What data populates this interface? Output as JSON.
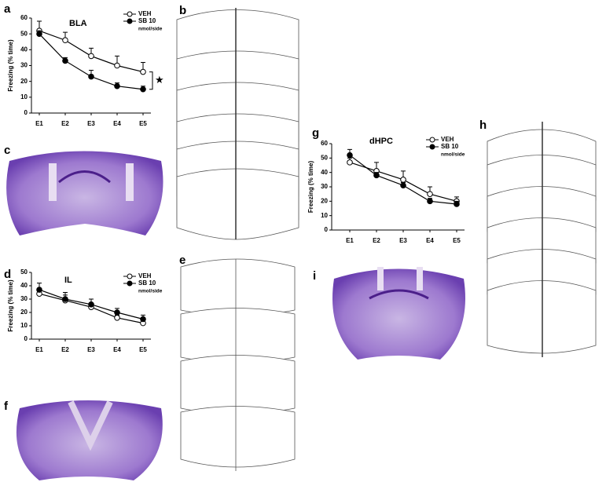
{
  "panel_labels": [
    "a",
    "b",
    "c",
    "d",
    "e",
    "f",
    "g",
    "h",
    "i"
  ],
  "chart_data": [
    {
      "type": "line",
      "title": "BLA",
      "y_label": "Freezing (% time)",
      "legend_note": "nmol/side",
      "annotation": "★",
      "categories": [
        "E1",
        "E2",
        "E3",
        "E4",
        "E5"
      ],
      "ylim": [
        0,
        60
      ],
      "yticks": [
        0,
        10,
        20,
        30,
        40,
        50,
        60
      ],
      "series": [
        {
          "name": "VEH",
          "color": "#000000",
          "marker": "open",
          "values": [
            52,
            46,
            36,
            30,
            26
          ],
          "errors": [
            6,
            5,
            5,
            6,
            6
          ]
        },
        {
          "name": "SB 10",
          "color": "#000000",
          "marker": "filled",
          "values": [
            50,
            33,
            23,
            17,
            15
          ],
          "errors": [
            2,
            2,
            4,
            2,
            2
          ]
        }
      ]
    },
    {
      "type": "line",
      "title": "IL",
      "y_label": "Freezing (% time)",
      "legend_note": "nmol/side",
      "categories": [
        "E1",
        "E2",
        "E3",
        "E4",
        "E5"
      ],
      "ylim": [
        0,
        50
      ],
      "yticks": [
        0,
        10,
        20,
        30,
        40,
        50
      ],
      "series": [
        {
          "name": "VEH",
          "color": "#000000",
          "marker": "open",
          "values": [
            34,
            29,
            24,
            16,
            12
          ],
          "errors": [
            3,
            4,
            3,
            2,
            2
          ]
        },
        {
          "name": "SB 10",
          "color": "#000000",
          "marker": "filled",
          "values": [
            37,
            30,
            26,
            20,
            15
          ],
          "errors": [
            5,
            5,
            4,
            3,
            3
          ]
        }
      ]
    },
    {
      "type": "line",
      "title": "dHPC",
      "y_label": "Freezing (% time)",
      "legend_note": "nmol/side",
      "categories": [
        "E1",
        "E2",
        "E3",
        "E4",
        "E5"
      ],
      "ylim": [
        0,
        60
      ],
      "yticks": [
        0,
        10,
        20,
        30,
        40,
        50,
        60
      ],
      "series": [
        {
          "name": "VEH",
          "color": "#000000",
          "marker": "open",
          "values": [
            47,
            41,
            35,
            25,
            20
          ],
          "errors": [
            3,
            6,
            6,
            5,
            3
          ]
        },
        {
          "name": "SB 10",
          "color": "#000000",
          "marker": "filled",
          "values": [
            52,
            38,
            31,
            20,
            18
          ],
          "errors": [
            4,
            2,
            2,
            2,
            2
          ]
        }
      ]
    }
  ]
}
